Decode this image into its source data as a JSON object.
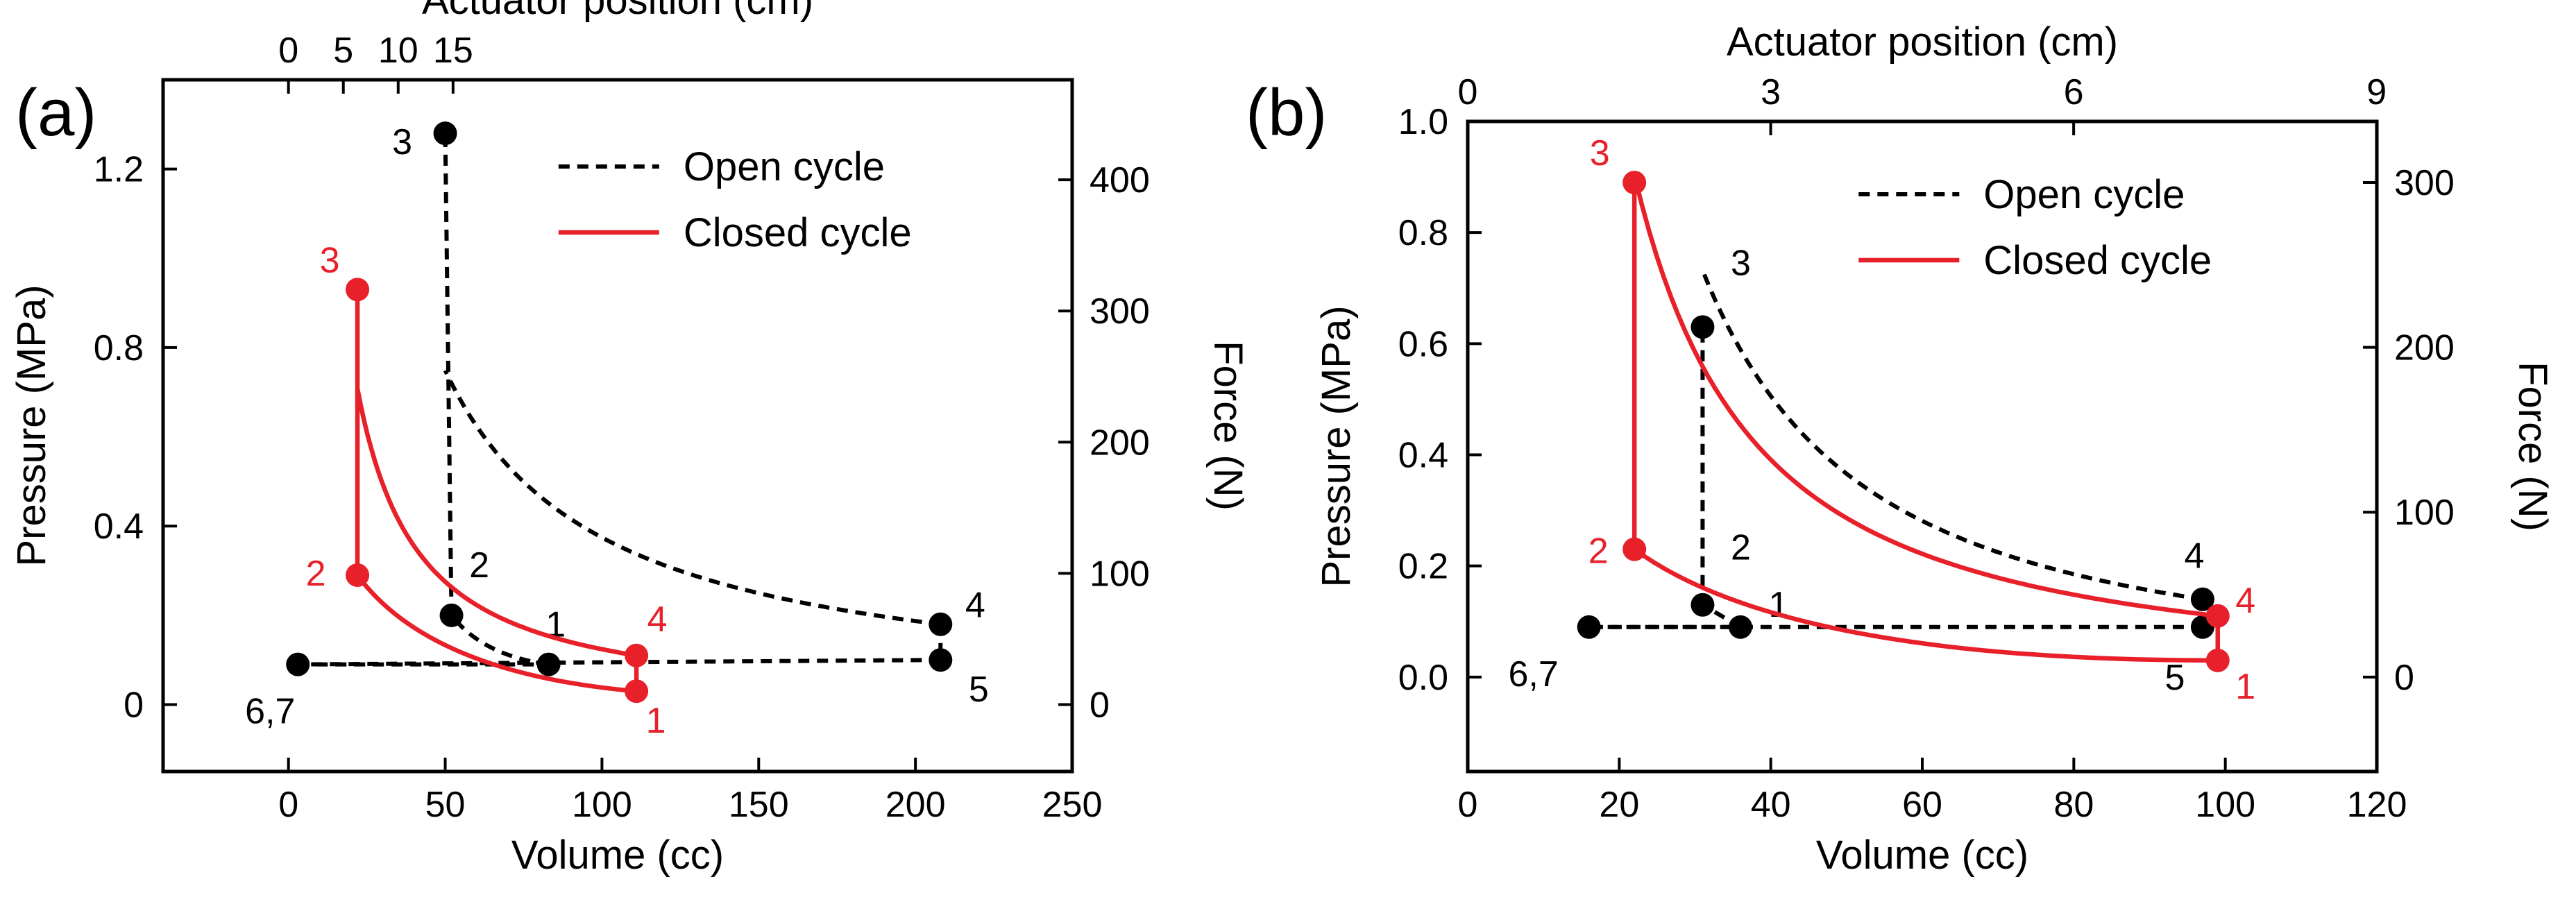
{
  "colors": {
    "open": "#000000",
    "closed": "#e8202a",
    "frame": "#000000"
  },
  "chart_data": [
    {
      "id": "a",
      "type": "line",
      "panel_label": "(a)",
      "xlabel": "Volume (cc)",
      "ylabel": "Pressure (MPa)",
      "x2label": "Actuator position (cm)",
      "y2label": "Force (N)",
      "xlim": [
        -40,
        250
      ],
      "ylim": [
        -0.15,
        1.4
      ],
      "xticks": [
        {
          "v": 0,
          "l": "0"
        },
        {
          "v": 50,
          "l": "50"
        },
        {
          "v": 100,
          "l": "100"
        },
        {
          "v": 150,
          "l": "150"
        },
        {
          "v": 200,
          "l": "200"
        },
        {
          "v": 250,
          "l": "250"
        }
      ],
      "yticks": [
        {
          "v": 0,
          "l": "0"
        },
        {
          "v": 0.4,
          "l": "0.4"
        },
        {
          "v": 0.8,
          "l": "0.8"
        },
        {
          "v": 1.2,
          "l": "1.2"
        }
      ],
      "x2ticks": [
        {
          "v": 0,
          "l": "0"
        },
        {
          "v": 5,
          "l": "5"
        },
        {
          "v": 10,
          "l": "10"
        },
        {
          "v": 15,
          "l": "15"
        }
      ],
      "y2ticks": [
        {
          "v": 0,
          "l": "0"
        },
        {
          "v": 100,
          "l": "100"
        },
        {
          "v": 200,
          "l": "200"
        },
        {
          "v": 300,
          "l": "300"
        },
        {
          "v": 400,
          "l": "400"
        }
      ],
      "x2map": [
        0,
        3.5,
        8
      ],
      "y2map": [
        0,
        0.00294
      ],
      "legend": {
        "position": "top-right",
        "open": "Open cycle",
        "closed": "Closed cycle"
      },
      "open_cycle": {
        "name": "Open cycle",
        "points": [
          {
            "label": "1",
            "x": 83,
            "y": 0.09,
            "lx": 10,
            "ly": -40
          },
          {
            "label": "2",
            "x": 52,
            "y": 0.2,
            "lx": 40,
            "ly": -55
          },
          {
            "label": "3",
            "x": 50,
            "y": 1.28,
            "lx": -62,
            "ly": 30
          },
          {
            "label": "4",
            "x": 208,
            "y": 0.18,
            "lx": 50,
            "ly": -10
          },
          {
            "label": "5",
            "x": 208,
            "y": 0.1,
            "lx": 55,
            "ly": 60
          },
          {
            "label": "6,7",
            "x": 3,
            "y": 0.09,
            "lx": -40,
            "ly": 85
          }
        ],
        "segments": [
          {
            "from": 0,
            "to": 1,
            "kind": "curve",
            "c": [
              62,
              0.11
            ]
          },
          {
            "from": 1,
            "to": 2,
            "kind": "line"
          },
          {
            "from": 2,
            "to": 3,
            "kind": "adiabat",
            "gamma": 1.0
          },
          {
            "from": 3,
            "to": 4,
            "kind": "line"
          },
          {
            "from": 4,
            "to": 5,
            "kind": "line"
          },
          {
            "from": 5,
            "to": 0,
            "kind": "line"
          }
        ]
      },
      "closed_cycle": {
        "name": "Closed cycle",
        "points": [
          {
            "label": "1",
            "x": 111,
            "y": 0.03,
            "lx": 28,
            "ly": 60
          },
          {
            "label": "2",
            "x": 22,
            "y": 0.29,
            "lx": -60,
            "ly": 15
          },
          {
            "label": "3",
            "x": 22,
            "y": 0.93,
            "lx": -40,
            "ly": -25
          },
          {
            "label": "4",
            "x": 111,
            "y": 0.11,
            "lx": 30,
            "ly": -35
          }
        ],
        "segments": [
          {
            "from": 0,
            "to": 1,
            "kind": "curve",
            "c": [
              45,
              0.07
            ]
          },
          {
            "from": 1,
            "to": 2,
            "kind": "line"
          },
          {
            "from": 2,
            "to": 3,
            "kind": "adiabat",
            "gamma": 1.15
          },
          {
            "from": 3,
            "to": 0,
            "kind": "line"
          }
        ]
      }
    },
    {
      "id": "b",
      "type": "line",
      "panel_label": "(b)",
      "xlabel": "Volume (cc)",
      "ylabel": "Pressure (MPa)",
      "x2label": "Actuator position (cm)",
      "y2label": "Force (N)",
      "xlim": [
        0,
        120
      ],
      "ylim": [
        -0.17,
        1.0
      ],
      "xticks": [
        {
          "v": 0,
          "l": "0"
        },
        {
          "v": 20,
          "l": "20"
        },
        {
          "v": 40,
          "l": "40"
        },
        {
          "v": 60,
          "l": "60"
        },
        {
          "v": 80,
          "l": "80"
        },
        {
          "v": 100,
          "l": "100"
        },
        {
          "v": 120,
          "l": "120"
        }
      ],
      "yticks": [
        {
          "v": 0.0,
          "l": "0.0"
        },
        {
          "v": 0.2,
          "l": "0.2"
        },
        {
          "v": 0.4,
          "l": "0.4"
        },
        {
          "v": 0.6,
          "l": "0.6"
        },
        {
          "v": 0.8,
          "l": "0.8"
        },
        {
          "v": 1.0,
          "l": "1.0"
        }
      ],
      "x2ticks": [
        {
          "v": 0,
          "l": "0"
        },
        {
          "v": 3,
          "l": "3"
        },
        {
          "v": 6,
          "l": "6"
        },
        {
          "v": 9,
          "l": "9"
        }
      ],
      "y2ticks": [
        {
          "v": 0,
          "l": "0"
        },
        {
          "v": 100,
          "l": "100"
        },
        {
          "v": 200,
          "l": "200"
        },
        {
          "v": 300,
          "l": "300"
        }
      ],
      "x2map": [
        0,
        13.33,
        1
      ],
      "y2map": [
        0,
        0.002967
      ],
      "legend": {
        "position": "top-right",
        "open": "Open cycle",
        "closed": "Closed cycle"
      },
      "open_cycle": {
        "name": "Open cycle",
        "points": [
          {
            "label": "1",
            "x": 36,
            "y": 0.09,
            "lx": 55,
            "ly": -15
          },
          {
            "label": "2",
            "x": 31,
            "y": 0.13,
            "lx": 55,
            "ly": -65
          },
          {
            "label": "3",
            "x": 31,
            "y": 0.63,
            "lx": 55,
            "ly": -75
          },
          {
            "label": "4",
            "x": 97,
            "y": 0.14,
            "lx": -12,
            "ly": -45
          },
          {
            "label": "5",
            "x": 97,
            "y": 0.09,
            "lx": -40,
            "ly": 90
          },
          {
            "label": "6,7",
            "x": 16,
            "y": 0.09,
            "lx": -80,
            "ly": 85
          }
        ],
        "segments": [
          {
            "from": 0,
            "to": 1,
            "kind": "line"
          },
          {
            "from": 1,
            "to": 2,
            "kind": "line"
          },
          {
            "from": 2,
            "to": 3,
            "kind": "adiabat",
            "gamma": 1.45
          },
          {
            "from": 3,
            "to": 4,
            "kind": "line"
          },
          {
            "from": 4,
            "to": 5,
            "kind": "line"
          },
          {
            "from": 5,
            "to": 0,
            "kind": "line"
          }
        ]
      },
      "closed_cycle": {
        "name": "Closed cycle",
        "points": [
          {
            "label": "1",
            "x": 99,
            "y": 0.03,
            "lx": 40,
            "ly": 55
          },
          {
            "label": "2",
            "x": 22,
            "y": 0.23,
            "lx": -52,
            "ly": 20
          },
          {
            "label": "3",
            "x": 22,
            "y": 0.89,
            "lx": -50,
            "ly": -25
          },
          {
            "label": "4",
            "x": 99,
            "y": 0.11,
            "lx": 40,
            "ly": -5
          }
        ],
        "segments": [
          {
            "from": 0,
            "to": 1,
            "kind": "curve",
            "c": [
              42,
              0.03
            ]
          },
          {
            "from": 1,
            "to": 2,
            "kind": "line"
          },
          {
            "from": 2,
            "to": 3,
            "kind": "adiabat",
            "gamma": 1.4
          },
          {
            "from": 3,
            "to": 0,
            "kind": "line"
          }
        ]
      }
    }
  ]
}
